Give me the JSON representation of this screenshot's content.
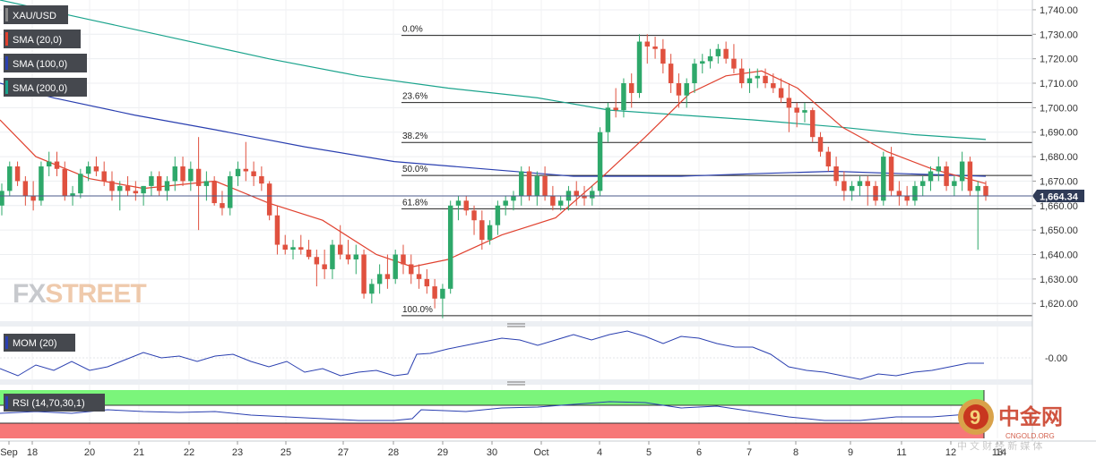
{
  "chart_data": {
    "type": "candlestick",
    "symbol": "XAU/USD",
    "current_price": "1,664.34",
    "price_axis": {
      "ylim": [
        1613.5,
        1744.0
      ],
      "ticks": [
        1620,
        1630,
        1640,
        1650,
        1660,
        1670,
        1680,
        1690,
        1700,
        1710,
        1720,
        1730,
        1740
      ]
    },
    "tick_labels": [
      "1,620.00",
      "1,630.00",
      "1,640.00",
      "1,650.00",
      "1,660.00",
      "1,670.00",
      "1,680.00",
      "1,690.00",
      "1,700.00",
      "1,710.00",
      "1,720.00",
      "1,730.00",
      "1,740.00"
    ],
    "x_labels": [
      "Sep",
      "18",
      "20",
      "21",
      "22",
      "23",
      "25",
      "27",
      "28",
      "29",
      "30",
      "Oct",
      "4",
      "5",
      "6",
      "7",
      "8",
      "9",
      "11",
      "12",
      "13",
      "14"
    ],
    "legend": [
      {
        "label": "XAU/USD",
        "color": "#888888"
      },
      {
        "label": "SMA (20,0)",
        "color": "#e0412f"
      },
      {
        "label": "SMA (100,0)",
        "color": "#2a3fb0"
      },
      {
        "label": "SMA (200,0)",
        "color": "#1aa38c"
      }
    ],
    "fib_levels": [
      {
        "label": "0.0%",
        "price": 1729.5
      },
      {
        "label": "23.6%",
        "price": 1702.1
      },
      {
        "label": "38.2%",
        "price": 1685.8
      },
      {
        "label": "50.0%",
        "price": 1672.3
      },
      {
        "label": "61.8%",
        "price": 1658.7
      },
      {
        "label": "100.0%",
        "price": 1615.0
      }
    ],
    "candles": [
      [
        1660,
        1669,
        1656,
        1666
      ],
      [
        1666,
        1678,
        1664,
        1676
      ],
      [
        1676,
        1678,
        1668,
        1670
      ],
      [
        1670,
        1672,
        1660,
        1664
      ],
      [
        1664,
        1670,
        1658,
        1662
      ],
      [
        1662,
        1678,
        1660,
        1676
      ],
      [
        1676,
        1682,
        1672,
        1678
      ],
      [
        1678,
        1682,
        1672,
        1675
      ],
      [
        1675,
        1678,
        1662,
        1664
      ],
      [
        1664,
        1668,
        1660,
        1665
      ],
      [
        1665,
        1675,
        1663,
        1673
      ],
      [
        1673,
        1678,
        1670,
        1676
      ],
      [
        1676,
        1680,
        1672,
        1674
      ],
      [
        1674,
        1678,
        1668,
        1670
      ],
      [
        1670,
        1674,
        1662,
        1666
      ],
      [
        1666,
        1670,
        1658,
        1668
      ],
      [
        1668,
        1672,
        1664,
        1666
      ],
      [
        1666,
        1670,
        1662,
        1665
      ],
      [
        1665,
        1668,
        1660,
        1668
      ],
      [
        1668,
        1674,
        1664,
        1672
      ],
      [
        1672,
        1674,
        1664,
        1666
      ],
      [
        1666,
        1672,
        1662,
        1670
      ],
      [
        1670,
        1680,
        1666,
        1676
      ],
      [
        1676,
        1680,
        1668,
        1670
      ],
      [
        1670,
        1678,
        1666,
        1675
      ],
      [
        1675,
        1688,
        1650,
        1668
      ],
      [
        1668,
        1674,
        1662,
        1670
      ],
      [
        1670,
        1672,
        1660,
        1661
      ],
      [
        1661,
        1666,
        1656,
        1659
      ],
      [
        1659,
        1674,
        1656,
        1672
      ],
      [
        1672,
        1678,
        1668,
        1675
      ],
      [
        1675,
        1686,
        1670,
        1674
      ],
      [
        1674,
        1678,
        1668,
        1672
      ],
      [
        1672,
        1676,
        1666,
        1669
      ],
      [
        1669,
        1670,
        1654,
        1656
      ],
      [
        1656,
        1660,
        1640,
        1644
      ],
      [
        1644,
        1648,
        1640,
        1642
      ],
      [
        1642,
        1646,
        1638,
        1643
      ],
      [
        1643,
        1648,
        1640,
        1642
      ],
      [
        1642,
        1646,
        1638,
        1639
      ],
      [
        1639,
        1642,
        1627,
        1636
      ],
      [
        1636,
        1642,
        1630,
        1634
      ],
      [
        1634,
        1646,
        1630,
        1644
      ],
      [
        1644,
        1652,
        1638,
        1640
      ],
      [
        1640,
        1646,
        1636,
        1638
      ],
      [
        1638,
        1644,
        1632,
        1640
      ],
      [
        1640,
        1642,
        1622,
        1624
      ],
      [
        1624,
        1630,
        1620,
        1628
      ],
      [
        1628,
        1636,
        1624,
        1632
      ],
      [
        1632,
        1640,
        1626,
        1630
      ],
      [
        1630,
        1642,
        1628,
        1640
      ],
      [
        1640,
        1644,
        1632,
        1636
      ],
      [
        1636,
        1640,
        1628,
        1632
      ],
      [
        1632,
        1636,
        1626,
        1630
      ],
      [
        1630,
        1634,
        1624,
        1627
      ],
      [
        1627,
        1630,
        1618,
        1622
      ],
      [
        1622,
        1628,
        1614,
        1626
      ],
      [
        1626,
        1662,
        1624,
        1660
      ],
      [
        1660,
        1664,
        1654,
        1662
      ],
      [
        1662,
        1664,
        1656,
        1658
      ],
      [
        1658,
        1660,
        1648,
        1654
      ],
      [
        1654,
        1658,
        1642,
        1646
      ],
      [
        1646,
        1654,
        1644,
        1652
      ],
      [
        1652,
        1662,
        1648,
        1660
      ],
      [
        1660,
        1664,
        1656,
        1662
      ],
      [
        1662,
        1666,
        1658,
        1664
      ],
      [
        1664,
        1676,
        1660,
        1674
      ],
      [
        1674,
        1676,
        1662,
        1664
      ],
      [
        1664,
        1674,
        1660,
        1672
      ],
      [
        1672,
        1676,
        1662,
        1664
      ],
      [
        1664,
        1668,
        1658,
        1660
      ],
      [
        1660,
        1664,
        1658,
        1662
      ],
      [
        1662,
        1668,
        1658,
        1666
      ],
      [
        1666,
        1670,
        1660,
        1664
      ],
      [
        1664,
        1668,
        1660,
        1663
      ],
      [
        1663,
        1668,
        1660,
        1666
      ],
      [
        1666,
        1692,
        1664,
        1690
      ],
      [
        1690,
        1702,
        1686,
        1700
      ],
      [
        1700,
        1708,
        1696,
        1699
      ],
      [
        1699,
        1712,
        1696,
        1710
      ],
      [
        1710,
        1714,
        1700,
        1706
      ],
      [
        1706,
        1730,
        1704,
        1727
      ],
      [
        1727,
        1730,
        1718,
        1725
      ],
      [
        1725,
        1729,
        1720,
        1724
      ],
      [
        1724,
        1728,
        1714,
        1718
      ],
      [
        1718,
        1722,
        1706,
        1710
      ],
      [
        1710,
        1714,
        1700,
        1705
      ],
      [
        1705,
        1712,
        1700,
        1710
      ],
      [
        1710,
        1720,
        1706,
        1718
      ],
      [
        1718,
        1722,
        1714,
        1719
      ],
      [
        1719,
        1724,
        1716,
        1721
      ],
      [
        1721,
        1726,
        1718,
        1724
      ],
      [
        1724,
        1727,
        1718,
        1720
      ],
      [
        1720,
        1726,
        1714,
        1716
      ],
      [
        1716,
        1720,
        1708,
        1710
      ],
      [
        1710,
        1716,
        1706,
        1712
      ],
      [
        1712,
        1716,
        1708,
        1713
      ],
      [
        1713,
        1716,
        1708,
        1710
      ],
      [
        1710,
        1714,
        1706,
        1708
      ],
      [
        1708,
        1712,
        1702,
        1704
      ],
      [
        1704,
        1710,
        1690,
        1700
      ],
      [
        1700,
        1702,
        1692,
        1698
      ],
      [
        1698,
        1702,
        1694,
        1699
      ],
      [
        1699,
        1700,
        1686,
        1688
      ],
      [
        1688,
        1690,
        1680,
        1682
      ],
      [
        1682,
        1684,
        1674,
        1676
      ],
      [
        1676,
        1680,
        1668,
        1670
      ],
      [
        1670,
        1674,
        1662,
        1666
      ],
      [
        1666,
        1670,
        1662,
        1668
      ],
      [
        1668,
        1672,
        1664,
        1670
      ],
      [
        1670,
        1672,
        1660,
        1668
      ],
      [
        1668,
        1670,
        1660,
        1662
      ],
      [
        1662,
        1682,
        1660,
        1680
      ],
      [
        1680,
        1684,
        1664,
        1666
      ],
      [
        1666,
        1670,
        1660,
        1664
      ],
      [
        1664,
        1668,
        1660,
        1662
      ],
      [
        1662,
        1670,
        1660,
        1668
      ],
      [
        1668,
        1672,
        1664,
        1670
      ],
      [
        1670,
        1676,
        1666,
        1674
      ],
      [
        1674,
        1680,
        1670,
        1676
      ],
      [
        1676,
        1678,
        1666,
        1668
      ],
      [
        1668,
        1672,
        1664,
        1670
      ],
      [
        1670,
        1682,
        1666,
        1678
      ],
      [
        1678,
        1680,
        1664,
        1666
      ],
      [
        1666,
        1670,
        1642,
        1668
      ],
      [
        1668,
        1670,
        1662,
        1664
      ]
    ],
    "sma20": [
      [
        0,
        1695
      ],
      [
        40,
        1680
      ],
      [
        100,
        1671
      ],
      [
        160,
        1667
      ],
      [
        240,
        1670
      ],
      [
        300,
        1661
      ],
      [
        360,
        1654
      ],
      [
        420,
        1640
      ],
      [
        460,
        1635
      ],
      [
        500,
        1638
      ],
      [
        560,
        1648
      ],
      [
        620,
        1655
      ],
      [
        670,
        1671
      ],
      [
        720,
        1688
      ],
      [
        770,
        1706
      ],
      [
        810,
        1713
      ],
      [
        850,
        1715
      ],
      [
        890,
        1708
      ],
      [
        940,
        1692
      ],
      [
        990,
        1682
      ],
      [
        1040,
        1675
      ],
      [
        1100,
        1669
      ]
    ],
    "sma100": [
      [
        0,
        1710
      ],
      [
        60,
        1704
      ],
      [
        150,
        1697
      ],
      [
        240,
        1691
      ],
      [
        340,
        1684
      ],
      [
        440,
        1678
      ],
      [
        540,
        1675
      ],
      [
        640,
        1672
      ],
      [
        700,
        1672
      ],
      [
        760,
        1672
      ],
      [
        840,
        1673
      ],
      [
        930,
        1674
      ],
      [
        1010,
        1673
      ],
      [
        1100,
        1672
      ]
    ],
    "sma200": [
      [
        0,
        1744
      ],
      [
        100,
        1736
      ],
      [
        200,
        1728
      ],
      [
        300,
        1720
      ],
      [
        400,
        1713
      ],
      [
        500,
        1708
      ],
      [
        600,
        1704
      ],
      [
        680,
        1699
      ],
      [
        760,
        1697
      ],
      [
        840,
        1695
      ],
      [
        940,
        1692
      ],
      [
        1020,
        1689
      ],
      [
        1100,
        1687
      ]
    ],
    "mom_label": "MOM (20)",
    "mom_value_label": "-0.00",
    "mom": [
      [
        0,
        412
      ],
      [
        20,
        420
      ],
      [
        40,
        408
      ],
      [
        60,
        414
      ],
      [
        80,
        404
      ],
      [
        100,
        414
      ],
      [
        120,
        410
      ],
      [
        140,
        402
      ],
      [
        160,
        394
      ],
      [
        180,
        400
      ],
      [
        200,
        398
      ],
      [
        220,
        404
      ],
      [
        240,
        398
      ],
      [
        260,
        396
      ],
      [
        280,
        404
      ],
      [
        300,
        410
      ],
      [
        320,
        404
      ],
      [
        340,
        416
      ],
      [
        360,
        412
      ],
      [
        380,
        420
      ],
      [
        400,
        416
      ],
      [
        420,
        414
      ],
      [
        440,
        420
      ],
      [
        455,
        418
      ],
      [
        465,
        396
      ],
      [
        480,
        395
      ],
      [
        500,
        390
      ],
      [
        520,
        386
      ],
      [
        540,
        382
      ],
      [
        560,
        378
      ],
      [
        580,
        380
      ],
      [
        600,
        386
      ],
      [
        620,
        380
      ],
      [
        640,
        374
      ],
      [
        660,
        380
      ],
      [
        680,
        374
      ],
      [
        700,
        370
      ],
      [
        720,
        376
      ],
      [
        740,
        384
      ],
      [
        760,
        376
      ],
      [
        780,
        378
      ],
      [
        800,
        384
      ],
      [
        820,
        388
      ],
      [
        840,
        388
      ],
      [
        860,
        396
      ],
      [
        880,
        410
      ],
      [
        900,
        414
      ],
      [
        920,
        416
      ],
      [
        940,
        420
      ],
      [
        960,
        424
      ],
      [
        980,
        418
      ],
      [
        1000,
        420
      ],
      [
        1020,
        416
      ],
      [
        1040,
        414
      ],
      [
        1060,
        410
      ],
      [
        1080,
        406
      ],
      [
        1098,
        406
      ]
    ],
    "rsi_label": "RSI (14,70,30,1)",
    "rsi": [
      [
        0,
        462
      ],
      [
        40,
        460
      ],
      [
        80,
        462
      ],
      [
        120,
        458
      ],
      [
        160,
        460
      ],
      [
        200,
        461
      ],
      [
        240,
        460
      ],
      [
        280,
        464
      ],
      [
        320,
        466
      ],
      [
        360,
        468
      ],
      [
        400,
        470
      ],
      [
        440,
        470
      ],
      [
        460,
        468
      ],
      [
        470,
        458
      ],
      [
        520,
        460
      ],
      [
        560,
        456
      ],
      [
        600,
        455
      ],
      [
        640,
        452
      ],
      [
        680,
        449
      ],
      [
        720,
        450
      ],
      [
        760,
        456
      ],
      [
        800,
        454
      ],
      [
        840,
        460
      ],
      [
        880,
        466
      ],
      [
        920,
        470
      ],
      [
        960,
        470
      ],
      [
        1000,
        466
      ],
      [
        1040,
        466
      ],
      [
        1080,
        463
      ],
      [
        1098,
        463
      ]
    ]
  },
  "watermark": {
    "brand_left": "FX",
    "brand_right": "STREET"
  },
  "footer_logo": {
    "cn": "中金网",
    "domain": "CNGOLD.ORG",
    "sub": "中 文 财 经 新 媒 体"
  }
}
